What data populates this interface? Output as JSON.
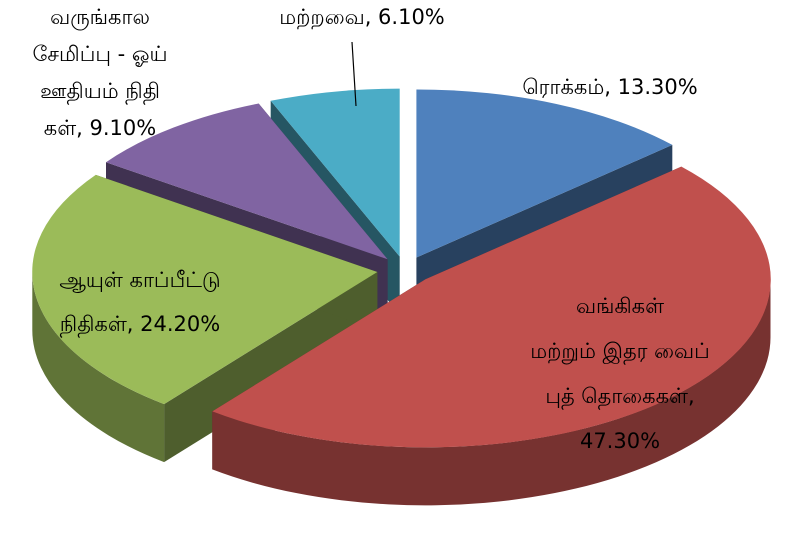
{
  "chart_data": {
    "type": "pie3d",
    "labels": [
      [
        "ரொக்கம், 13.30%"
      ],
      [
        "வங்கிகள்",
        "மற்றும் இதர வைப்",
        "புத் தொகைகள்,",
        "47.30%"
      ],
      [
        "ஆயுள் காப்பீட்டு",
        "நிதிகள், 24.20%"
      ],
      [
        "வருங்கால",
        "சேமிப்பு - ஓய்",
        "ஊதியம் நிதி",
        "கள், 9.10%"
      ],
      [
        "மற்றவை, 6.10%"
      ]
    ],
    "values": [
      13.3,
      47.3,
      24.2,
      9.1,
      6.1
    ],
    "colors": [
      "#4f81bd",
      "#c0504d",
      "#9bbb59",
      "#8064a2",
      "#4bacc6"
    ]
  }
}
